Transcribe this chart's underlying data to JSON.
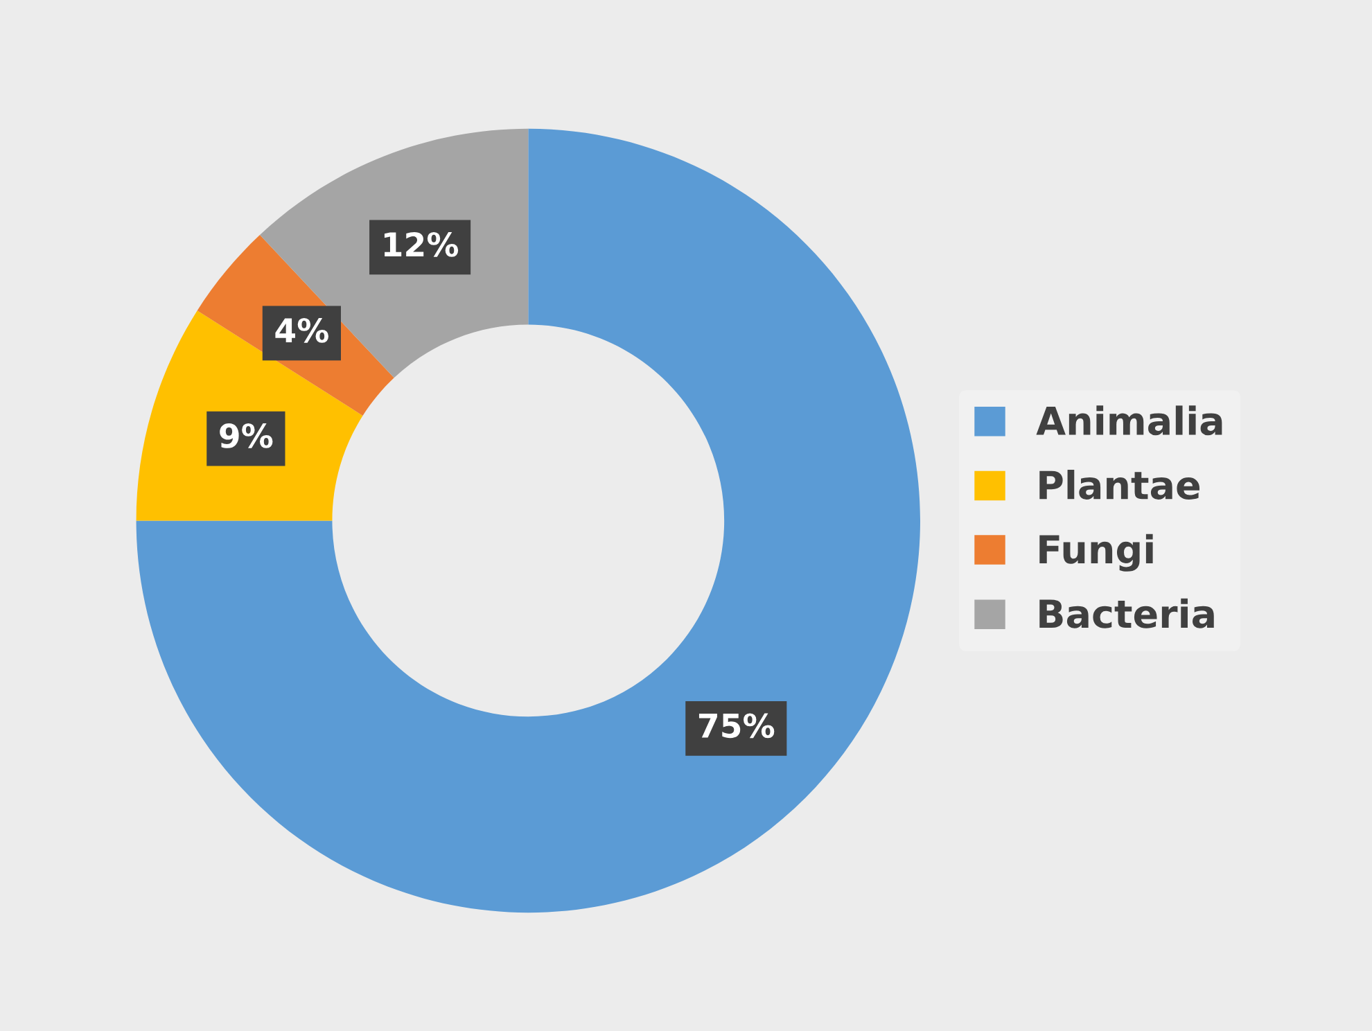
{
  "chart_data": {
    "type": "donut",
    "categories": [
      "Animalia",
      "Plantae",
      "Fungi",
      "Bacteria"
    ],
    "values": [
      75,
      9,
      4,
      12
    ],
    "colors": [
      "#5b9bd5",
      "#ffc000",
      "#ed7d31",
      "#a5a5a5"
    ],
    "value_labels": [
      "75%",
      "9%",
      "4%",
      "12%"
    ],
    "legend": "right"
  }
}
